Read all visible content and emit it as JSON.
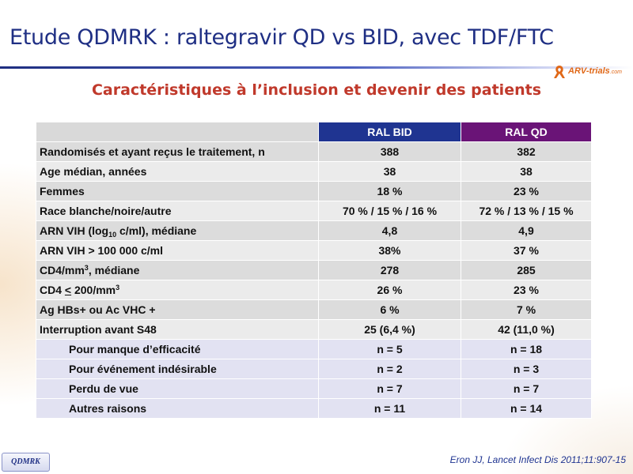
{
  "header": {
    "title": "Etude QDMRK : raltegravir QD vs BID, avec TDF/FTC",
    "subtitle": "Caractéristiques à l’inclusion et devenir des patients"
  },
  "logo": {
    "name": "ARV-trials",
    "domain": ".com"
  },
  "table": {
    "columns": [
      "",
      "RAL BID",
      "RAL QD"
    ],
    "rows": {
      "randomises": {
        "label": "Randomisés et ayant reçus le traitement, n",
        "bid": "388",
        "qd": "382"
      },
      "age": {
        "label": "Age médian, années",
        "bid": "38",
        "qd": "38"
      },
      "femmes": {
        "label": "Femmes",
        "bid": "18 %",
        "qd": "23 %"
      },
      "race": {
        "label": "Race blanche/noire/autre",
        "bid": "70 % / 15 % / 16 %",
        "qd": "72 % / 13 % / 15 %"
      },
      "arn_median": {
        "label_pre": "ARN VIH (log",
        "label_sub": "10",
        "label_post": " c/ml), médiane",
        "bid": "4,8",
        "qd": "4,9"
      },
      "arn_100k": {
        "label": "ARN VIH > 100 000 c/ml",
        "bid": "38%",
        "qd": "37 %"
      },
      "cd4_median": {
        "label_pre": "CD4/mm",
        "label_sup": "3",
        "label_post": ", médiane",
        "bid": "278",
        "qd": "285"
      },
      "cd4_200": {
        "label_pre": "CD4 ",
        "label_le": "<",
        "label_mid": " 200/mm",
        "label_sup": "3",
        "bid": "26 %",
        "qd": "23 %"
      },
      "aghbs": {
        "label": "Ag HBs+ ou Ac VHC +",
        "bid": "6 %",
        "qd": "7 %"
      },
      "interruption": {
        "label": "Interruption avant S48",
        "bid": "25 (6,4 %)",
        "qd": "42 (11,0 %)"
      },
      "efficacite": {
        "label": "Pour manque d’efficacité",
        "bid": "n = 5",
        "qd": "n = 18"
      },
      "indesirable": {
        "label": "Pour événement indésirable",
        "bid": "n = 2",
        "qd": "n = 3"
      },
      "perdu": {
        "label": "Perdu de vue",
        "bid": "n = 7",
        "qd": "n = 7"
      },
      "autres": {
        "label": "Autres raisons",
        "bid": "n = 11",
        "qd": "n = 14"
      }
    }
  },
  "footer": {
    "tag": "QDMRK",
    "citation": "Eron JJ, Lancet Infect Dis 2011;11:907-15"
  },
  "colors": {
    "title": "#1f2f84",
    "subtitle": "#c0392b",
    "bid_header": "#1f3491",
    "qd_header": "#6a1477",
    "row_dark": "#dcdcdc",
    "row_light": "#ebebeb",
    "row_sub": "#e2e2f2",
    "logo": "#e06818"
  }
}
